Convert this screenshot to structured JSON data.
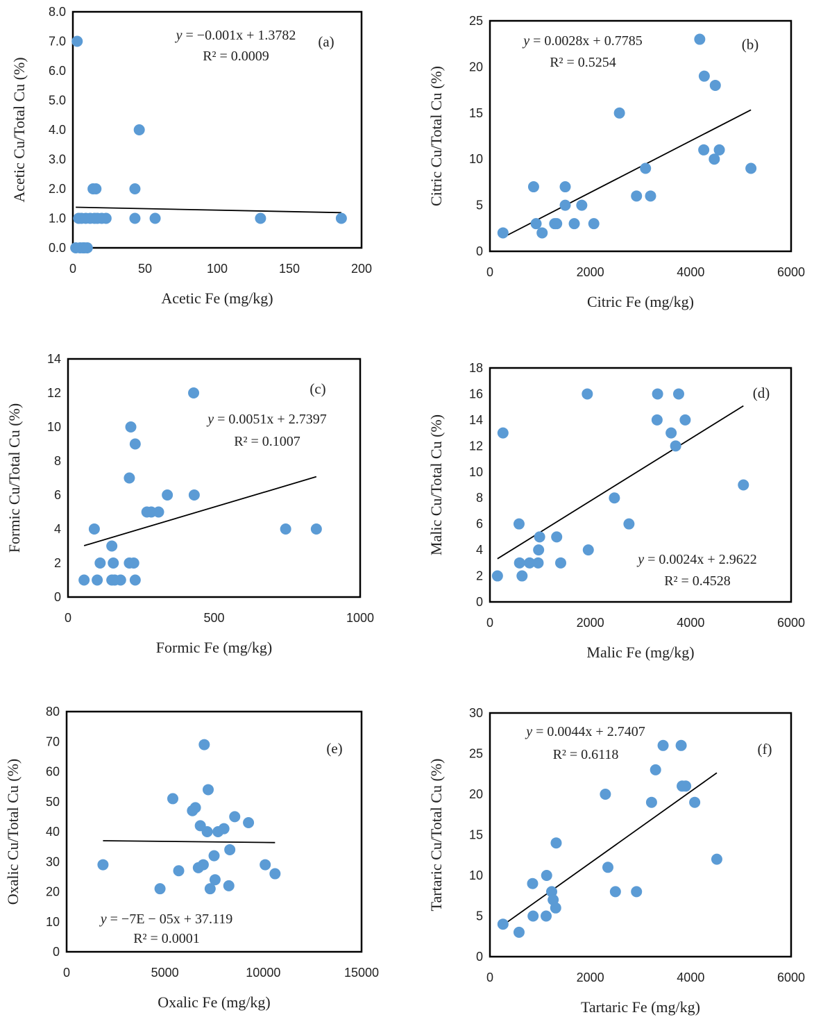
{
  "chart_data": [
    {
      "type": "scatter",
      "panel_label": "(a)",
      "xlabel": "Acetic Fe (mg/kg)",
      "ylabel": "Acetic Cu/Total Cu (%)",
      "xlim": [
        0,
        200
      ],
      "ylim": [
        0,
        8
      ],
      "xticks": [
        0,
        50,
        100,
        150,
        200
      ],
      "yticks": [
        0,
        1,
        2,
        3,
        4,
        5,
        6,
        7,
        8
      ],
      "xtick_labels": [
        "0",
        "50",
        "100",
        "150",
        "200"
      ],
      "ytick_labels": [
        "0.0",
        "1.0",
        "2.0",
        "3.0",
        "4.0",
        "5.0",
        "6.0",
        "7.0",
        "8.0"
      ],
      "x": [
        2,
        3,
        4,
        5,
        6,
        7,
        8,
        9,
        10,
        12,
        15,
        17,
        20,
        23,
        43,
        43,
        46,
        57,
        130,
        186,
        14,
        16
      ],
      "y": [
        0,
        7,
        1,
        0,
        1,
        0,
        0,
        1,
        0,
        1,
        1,
        1,
        1,
        1,
        2,
        1,
        4,
        1,
        1,
        1,
        2,
        2
      ],
      "trendline": {
        "x": [
          2,
          186
        ],
        "slope": -0.001,
        "intercept": 1.3782
      },
      "equation_y": "y",
      "equation_rhs": " = −0.001x + 1.3782",
      "r2_text": "R² = 0.0009"
    },
    {
      "type": "scatter",
      "panel_label": "(b)",
      "xlabel": "Citric Fe (mg/kg)",
      "ylabel": "Citric Cu/Total Cu (%)",
      "xlim": [
        0,
        6000
      ],
      "ylim": [
        0,
        25
      ],
      "xticks": [
        0,
        2000,
        4000,
        6000
      ],
      "yticks": [
        0,
        5,
        10,
        15,
        20,
        25
      ],
      "xtick_labels": [
        "0",
        "2000",
        "4000",
        "6000"
      ],
      "ytick_labels": [
        "0",
        "5",
        "10",
        "15",
        "20",
        "25"
      ],
      "x": [
        260,
        870,
        920,
        1040,
        1290,
        1330,
        1500,
        1500,
        1680,
        1830,
        2070,
        2580,
        2920,
        3100,
        3200,
        4180,
        4260,
        4270,
        4470,
        4490,
        4570,
        5200
      ],
      "y": [
        2,
        7,
        3,
        2,
        3,
        3,
        5,
        7,
        3,
        5,
        3,
        15,
        6,
        9,
        6,
        23,
        11,
        19,
        10,
        18,
        11,
        9
      ],
      "trendline": {
        "x": [
          260,
          5200
        ],
        "slope": 0.0028,
        "intercept": 0.7785
      },
      "equation_y": "y",
      "equation_rhs": " = 0.0028x + 0.7785",
      "r2_text": "R² = 0.5254"
    },
    {
      "type": "scatter",
      "panel_label": "(c)",
      "xlabel": "Formic Fe (mg/kg)",
      "ylabel": "Formic Cu/Total Cu (%)",
      "xlim": [
        0,
        1000
      ],
      "ylim": [
        0,
        14
      ],
      "xticks": [
        0,
        500,
        1000
      ],
      "yticks": [
        0,
        2,
        4,
        6,
        8,
        10,
        12,
        14
      ],
      "xtick_labels": [
        "0",
        "500",
        "1000"
      ],
      "ytick_labels": [
        "0",
        "2",
        "4",
        "6",
        "8",
        "10",
        "12",
        "14"
      ],
      "x": [
        55,
        90,
        100,
        110,
        150,
        150,
        155,
        160,
        180,
        210,
        210,
        215,
        225,
        230,
        230,
        270,
        285,
        310,
        340,
        430,
        432,
        745,
        850
      ],
      "y": [
        1,
        4,
        1,
        2,
        1,
        3,
        2,
        1,
        1,
        7,
        2,
        10,
        2,
        9,
        1,
        5,
        5,
        5,
        6,
        12,
        6,
        4,
        4
      ],
      "trendline": {
        "x": [
          55,
          850
        ],
        "slope": 0.0051,
        "intercept": 2.7397
      },
      "equation_y": "y",
      "equation_rhs": " = 0.0051x + 2.7397",
      "r2_text": "R² = 0.1007"
    },
    {
      "type": "scatter",
      "panel_label": "(d)",
      "xlabel": "Malic Fe (mg/kg)",
      "ylabel": "Malic Cu/Total Cu (%)",
      "xlim": [
        0,
        6000
      ],
      "ylim": [
        0,
        18
      ],
      "xticks": [
        0,
        2000,
        4000,
        6000
      ],
      "yticks": [
        0,
        2,
        4,
        6,
        8,
        10,
        12,
        14,
        16,
        18
      ],
      "xtick_labels": [
        "0",
        "2000",
        "4000",
        "6000"
      ],
      "ytick_labels": [
        "0",
        "2",
        "4",
        "6",
        "8",
        "10",
        "12",
        "14",
        "16",
        "18"
      ],
      "x": [
        150,
        260,
        580,
        590,
        640,
        790,
        960,
        970,
        990,
        1330,
        1410,
        1940,
        1960,
        2480,
        2770,
        3330,
        3340,
        3610,
        3700,
        3760,
        3890,
        5050
      ],
      "y": [
        2,
        13,
        6,
        3,
        2,
        3,
        3,
        4,
        5,
        5,
        3,
        16,
        4,
        8,
        6,
        14,
        16,
        13,
        12,
        16,
        14,
        9
      ],
      "trendline": {
        "x": [
          150,
          5050
        ],
        "slope": 0.0024,
        "intercept": 2.9622
      },
      "equation_y": "y",
      "equation_rhs": " = 0.0024x + 2.9622",
      "r2_text": "R² = 0.4528"
    },
    {
      "type": "scatter",
      "panel_label": "(e)",
      "xlabel": "Oxalic Fe (mg/kg)",
      "ylabel": "Oxalic Cu/Total Cu (%)",
      "xlim": [
        0,
        15000
      ],
      "ylim": [
        0,
        80
      ],
      "xticks": [
        0,
        5000,
        10000,
        15000
      ],
      "yticks": [
        0,
        10,
        20,
        30,
        40,
        50,
        60,
        70,
        80
      ],
      "xtick_labels": [
        "0",
        "5000",
        "10000",
        "15000"
      ],
      "ytick_labels": [
        "0",
        "10",
        "20",
        "30",
        "40",
        "50",
        "60",
        "70",
        "80"
      ],
      "x": [
        1850,
        4750,
        5400,
        5700,
        6400,
        6550,
        6700,
        6800,
        6950,
        7000,
        7150,
        7200,
        7300,
        7500,
        7550,
        7700,
        8000,
        8250,
        8300,
        8550,
        9250,
        10100,
        10600
      ],
      "y": [
        29,
        21,
        51,
        27,
        47,
        48,
        28,
        42,
        29,
        69,
        40,
        54,
        21,
        32,
        24,
        40,
        41,
        22,
        34,
        45,
        43,
        29,
        26
      ],
      "trendline": {
        "x": [
          1850,
          10600
        ],
        "slope": -7e-05,
        "intercept": 37.119
      },
      "equation_y": "y",
      "equation_rhs": " = −7E − 05x + 37.119",
      "r2_text": "R² = 0.0001"
    },
    {
      "type": "scatter",
      "panel_label": "(f)",
      "xlabel": "Tartaric Fe (mg/kg)",
      "ylabel": "Tartaric Cu/Total Cu (%)",
      "xlim": [
        0,
        6000
      ],
      "ylim": [
        0,
        30
      ],
      "xticks": [
        0,
        2000,
        4000,
        6000
      ],
      "yticks": [
        0,
        5,
        10,
        15,
        20,
        25,
        30
      ],
      "xtick_labels": [
        "0",
        "2000",
        "4000",
        "6000"
      ],
      "ytick_labels": [
        "0",
        "5",
        "10",
        "15",
        "20",
        "25",
        "30"
      ],
      "x": [
        260,
        580,
        850,
        860,
        1120,
        1130,
        1230,
        1260,
        1310,
        1320,
        2300,
        2350,
        2500,
        2920,
        3220,
        3300,
        3450,
        3810,
        3830,
        3900,
        4080,
        4520
      ],
      "y": [
        4,
        3,
        9,
        5,
        5,
        10,
        8,
        7,
        6,
        14,
        20,
        11,
        8,
        8,
        19,
        23,
        26,
        26,
        21,
        21,
        19,
        12
      ],
      "trendline": {
        "x": [
          260,
          4520
        ],
        "slope": 0.0044,
        "intercept": 2.7407
      },
      "equation_y": "y",
      "equation_rhs": " = 0.0044x + 2.7407",
      "r2_text": "R² = 0.6118"
    }
  ]
}
